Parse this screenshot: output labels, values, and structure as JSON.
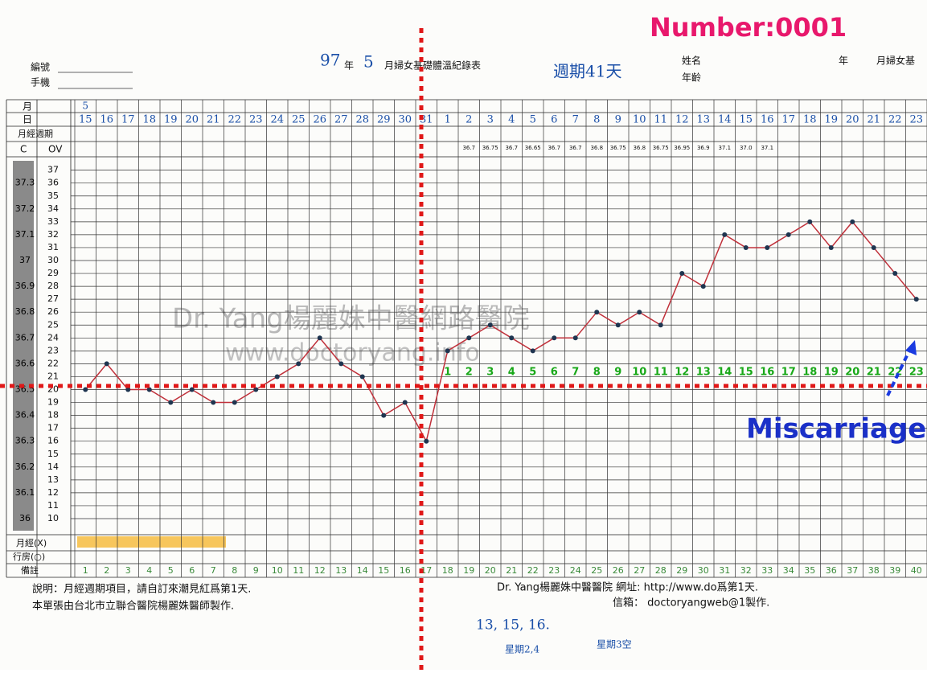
{
  "header": {
    "number": "Number:0001",
    "id_label": "編號",
    "phone_label": "手機",
    "year": "97",
    "year_label": "年",
    "month": "5",
    "title": "月婦女基礎體溫紀錄表",
    "cycle_note": "週期41天",
    "name_label": "姓名",
    "age_label": "年齡",
    "right_year_label": "年",
    "right_title": "月婦女基"
  },
  "row_labels": {
    "month": "月",
    "day": "日",
    "cycle": "月經週期",
    "c": "C",
    "ov": "OV",
    "menses": "月經(X)",
    "intercourse": "行房(○)",
    "notes": "備註"
  },
  "watermark": {
    "line1": "Dr. Yang楊麗姝中醫網路醫院",
    "line2": "www.doctoryang.info"
  },
  "chart_data": {
    "type": "line",
    "categories": [
      "15",
      "16",
      "17",
      "18",
      "19",
      "20",
      "21",
      "22",
      "23",
      "24",
      "25",
      "26",
      "27",
      "28",
      "29",
      "30",
      "31",
      "1",
      "2",
      "3",
      "4",
      "5",
      "6",
      "7",
      "8",
      "9",
      "10",
      "11",
      "12",
      "13",
      "14",
      "15",
      "16",
      "17",
      "18",
      "19",
      "20",
      "21",
      "22",
      "23"
    ],
    "values": [
      20,
      22,
      20,
      20,
      19,
      20,
      19,
      19,
      20,
      21,
      22,
      24,
      22,
      21,
      18,
      19,
      16,
      23,
      24,
      25,
      24,
      23,
      24,
      24,
      26,
      25,
      26,
      25,
      29,
      28,
      32,
      31,
      31,
      32,
      33,
      31,
      33,
      31,
      29,
      27
    ],
    "color": "#c0303a",
    "ylim": [
      10,
      37
    ],
    "yticks": [
      10,
      11,
      12,
      13,
      14,
      15,
      16,
      17,
      18,
      19,
      20,
      21,
      22,
      23,
      24,
      25,
      26,
      27,
      28,
      29,
      30,
      31,
      32,
      33,
      34,
      35,
      36,
      37
    ],
    "y2lim": [
      36,
      37.35
    ],
    "y2ticks": [
      36,
      36.1,
      36.2,
      36.3,
      36.4,
      36.5,
      36.6,
      36.7,
      36.8,
      36.9,
      37,
      37.1,
      37.2,
      37.3
    ],
    "cycle_days": [
      null,
      null,
      null,
      null,
      null,
      null,
      null,
      null,
      null,
      null,
      null,
      null,
      null,
      null,
      null,
      null,
      null,
      "1",
      "2",
      "3",
      "4",
      "5",
      "6",
      "7",
      "8",
      "9",
      "10",
      "11",
      "12",
      "13",
      "14",
      "15",
      "16",
      "17",
      "18",
      "19",
      "20",
      "21",
      "22",
      "23"
    ],
    "ov_notes": [
      null,
      null,
      null,
      null,
      null,
      null,
      null,
      null,
      null,
      null,
      null,
      null,
      null,
      null,
      null,
      null,
      null,
      null,
      "36.7",
      "36.75",
      "36.7",
      "36.65",
      "36.7",
      "36.7",
      "36.8",
      "36.75",
      "36.8",
      "36.75",
      "36.95",
      "36.9",
      "37.1",
      "37.0",
      "37.1",
      null,
      null,
      null,
      null,
      null,
      null,
      null
    ],
    "notes_row": [
      "1",
      "2",
      "3",
      "4",
      "5",
      "6",
      "7",
      "8",
      "9",
      "10",
      "11",
      "12",
      "13",
      "14",
      "15",
      "16",
      "17",
      "18",
      "19",
      "20",
      "21",
      "22",
      "23",
      "24",
      "25",
      "26",
      "27",
      "28",
      "29",
      "30",
      "31",
      "32",
      "33",
      "34",
      "35",
      "36",
      "37",
      "38",
      "39",
      "40"
    ],
    "annotation": "Miscarriage"
  },
  "footer": {
    "line1": "說明：月經週期項目，請自訂來潮見紅爲第1天.",
    "line2": "本單張由台北市立聯合醫院楊麗姝醫師製作.",
    "right1": "Dr. Yang楊麗姝中醫醫院  網址:  http://www.do爲第1天.",
    "right2": "信箱：  doctoryangweb@1製作.",
    "hand1": "13, 15, 16.",
    "hand2": "星期2,4",
    "hand3": "星期3空"
  }
}
